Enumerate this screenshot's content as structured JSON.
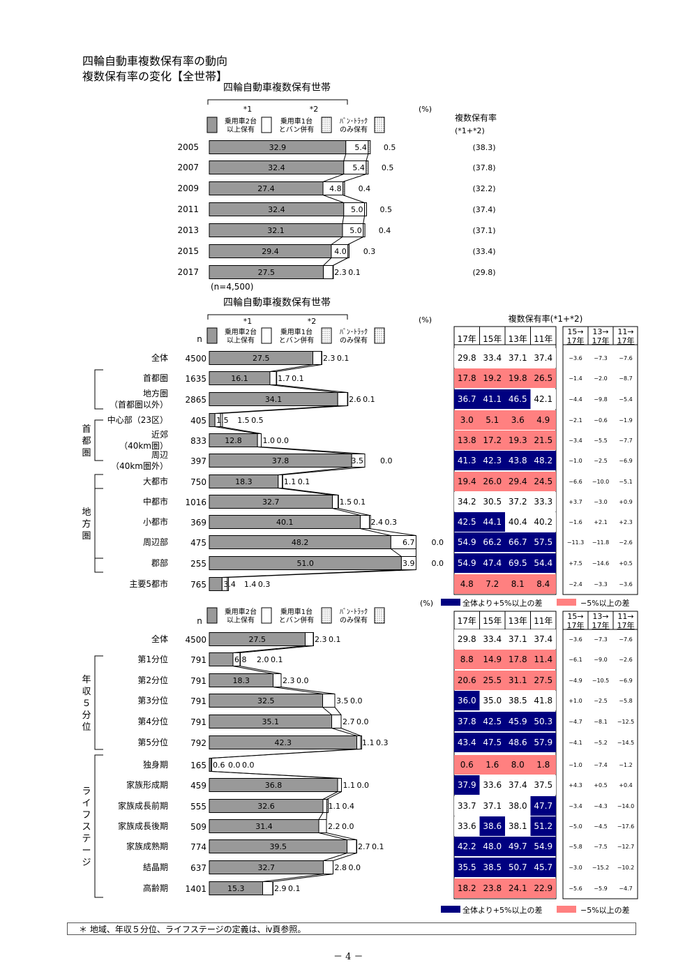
{
  "page": {
    "title_line1": "四輪自動車複数保有率の動向",
    "title_line2": "複数保有率の変化【全世帯】",
    "footnote": "＊ 地域、年収５分位、ライフステージの定義は、ⅳ頁参照。",
    "page_number": "－ 4 －"
  },
  "colors": {
    "bar": "#999999",
    "high": "#000080",
    "low": "#FF8080"
  },
  "legend": {
    "star1": "*1",
    "star2": "*2",
    "pct": "(%)",
    "cat1_a": "乗用車2台",
    "cat1_b": "以上保有",
    "cat2_a": "乗用車1台",
    "cat2_b": "とバン併有",
    "cat3_a": "ﾊﾞﾝ･ﾄﾗｯｸ",
    "cat3_b": "のみ保有",
    "n": "n",
    "high_label": "全体より+5%以上の差",
    "low_label": "−5%以上の差"
  },
  "chart_data": [
    {
      "type": "bar",
      "stacked": true,
      "title": "四輪自動車複数保有世帯",
      "series_names": [
        "乗用車2台以上保有",
        "乗用車1台とバン併有",
        "ﾊﾞﾝ･ﾄﾗｯｸのみ保有"
      ],
      "categories": [
        "2005",
        "2007",
        "2009",
        "2011",
        "2013",
        "2015",
        "2017"
      ],
      "rows": [
        {
          "label": "2005",
          "v": [
            32.9,
            5.4,
            0.5
          ],
          "rate": "(38.3)"
        },
        {
          "label": "2007",
          "v": [
            32.4,
            5.4,
            0.5
          ],
          "rate": "(37.8)"
        },
        {
          "label": "2009",
          "v": [
            27.4,
            4.8,
            0.4
          ],
          "rate": "(32.2)"
        },
        {
          "label": "2011",
          "v": [
            32.4,
            5.0,
            0.5
          ],
          "rate": "(37.4)"
        },
        {
          "label": "2013",
          "v": [
            32.1,
            5.0,
            0.4
          ],
          "rate": "(37.1)"
        },
        {
          "label": "2015",
          "v": [
            29.4,
            4.0,
            0.3
          ],
          "rate": "(33.4)"
        },
        {
          "label": "2017",
          "v": [
            27.5,
            2.3,
            0.1
          ],
          "rate": "(29.8)"
        }
      ],
      "rate_header_1": "複数保有率",
      "rate_header_2": "(*1+*2)",
      "n_note": "(n=4,500)"
    },
    {
      "type": "bar",
      "stacked": true,
      "title": "四輪自動車複数保有世帯",
      "table_title": "複数保有率(*1+*2)",
      "rate_columns": [
        "17年",
        "15年",
        "13年",
        "11年"
      ],
      "diff_columns": [
        "15→\n17年",
        "13→\n17年",
        "11→\n17年"
      ],
      "groups": [
        {
          "label": "首都圏",
          "from": 4,
          "to": 6
        },
        {
          "label": "地方圏",
          "from": 7,
          "to": 11
        }
      ],
      "rows": [
        {
          "label": "全体",
          "n": "4500",
          "v": [
            27.5,
            2.3,
            0.1
          ],
          "rates": [
            29.8,
            33.4,
            37.1,
            37.4
          ],
          "cls": [
            "",
            "",
            "",
            ""
          ],
          "diffs": [
            "−3.6",
            "−7.3",
            "−7.6"
          ]
        },
        {
          "label": "首都圏",
          "n": "1635",
          "v": [
            16.1,
            1.7,
            0.1
          ],
          "rates": [
            17.8,
            19.2,
            19.8,
            26.5
          ],
          "cls": [
            "l",
            "l",
            "l",
            "l"
          ],
          "diffs": [
            "−1.4",
            "−2.0",
            "−8.7"
          ]
        },
        {
          "label": "地方圏",
          "label2": "（首都圏以外）",
          "n": "2865",
          "v": [
            34.1,
            2.6,
            0.1
          ],
          "rates": [
            36.7,
            41.1,
            46.5,
            42.1
          ],
          "cls": [
            "h",
            "h",
            "h",
            ""
          ],
          "diffs": [
            "−4.4",
            "−9.8",
            "−5.4"
          ]
        },
        {
          "label": "中心部（23区）",
          "n": "405",
          "v": [
            1.5,
            1.5,
            0.5
          ],
          "rates": [
            3.0,
            5.1,
            3.6,
            4.9
          ],
          "cls": [
            "l",
            "l",
            "l",
            "l"
          ],
          "diffs": [
            "−2.1",
            "−0.6",
            "−1.9"
          ]
        },
        {
          "label": "近郊",
          "label2": "（40km圏）",
          "n": "833",
          "v": [
            12.8,
            1.0,
            0.0
          ],
          "rates": [
            13.8,
            17.2,
            19.3,
            21.5
          ],
          "cls": [
            "l",
            "l",
            "l",
            "l"
          ],
          "diffs": [
            "−3.4",
            "−5.5",
            "−7.7"
          ]
        },
        {
          "label": "周辺",
          "label2": "（40km圏外）",
          "n": "397",
          "v": [
            37.8,
            3.5,
            0.0
          ],
          "rates": [
            41.3,
            42.3,
            43.8,
            48.2
          ],
          "cls": [
            "h",
            "h",
            "h",
            "h"
          ],
          "diffs": [
            "−1.0",
            "−2.5",
            "−6.9"
          ]
        },
        {
          "label": "大都市",
          "n": "750",
          "v": [
            18.3,
            1.1,
            0.1
          ],
          "rates": [
            19.4,
            26.0,
            29.4,
            24.5
          ],
          "cls": [
            "l",
            "l",
            "l",
            "l"
          ],
          "diffs": [
            "−6.6",
            "−10.0",
            "−5.1"
          ]
        },
        {
          "label": "中都市",
          "n": "1016",
          "v": [
            32.7,
            1.5,
            0.1
          ],
          "rates": [
            34.2,
            30.5,
            37.2,
            33.3
          ],
          "cls": [
            "",
            "",
            "",
            ""
          ],
          "diffs": [
            "+3.7",
            "−3.0",
            "+0.9"
          ]
        },
        {
          "label": "小都市",
          "n": "369",
          "v": [
            40.1,
            2.4,
            0.3
          ],
          "rates": [
            42.5,
            44.1,
            40.4,
            40.2
          ],
          "cls": [
            "h",
            "h",
            "",
            ""
          ],
          "diffs": [
            "−1.6",
            "+2.1",
            "+2.3"
          ]
        },
        {
          "label": "周辺部",
          "n": "475",
          "v": [
            48.2,
            6.7,
            0.0
          ],
          "rates": [
            54.9,
            66.2,
            66.7,
            57.5
          ],
          "cls": [
            "h",
            "h",
            "h",
            "h"
          ],
          "diffs": [
            "−11.3",
            "−11.8",
            "−2.6"
          ]
        },
        {
          "label": "郡部",
          "n": "255",
          "v": [
            51.0,
            3.9,
            0.0
          ],
          "rates": [
            54.9,
            47.4,
            69.5,
            54.4
          ],
          "cls": [
            "h",
            "h",
            "h",
            "h"
          ],
          "diffs": [
            "+7.5",
            "−14.6",
            "+0.5"
          ]
        },
        {
          "label": "主要5都市",
          "n": "765",
          "v": [
            3.4,
            1.4,
            0.3
          ],
          "rates": [
            4.8,
            7.2,
            8.1,
            8.4
          ],
          "cls": [
            "l",
            "l",
            "l",
            "l"
          ],
          "diffs": [
            "−2.4",
            "−3.3",
            "−3.6"
          ]
        }
      ],
      "side_groups": [
        {
          "text": "首都圏",
          "from": 3,
          "to": 5
        },
        {
          "text": "地方圏",
          "from": 6,
          "to": 10
        }
      ]
    },
    {
      "type": "bar",
      "stacked": true,
      "rate_columns": [
        "17年",
        "15年",
        "13年",
        "11年"
      ],
      "diff_columns": [
        "15→\n17年",
        "13→\n17年",
        "11→\n17年"
      ],
      "rows": [
        {
          "label": "全体",
          "n": "4500",
          "v": [
            27.5,
            2.3,
            0.1
          ],
          "rates": [
            29.8,
            33.4,
            37.1,
            37.4
          ],
          "cls": [
            "",
            "",
            "",
            ""
          ],
          "diffs": [
            "−3.6",
            "−7.3",
            "−7.6"
          ]
        },
        {
          "label": "第1分位",
          "n": "791",
          "v": [
            6.8,
            2.0,
            0.1
          ],
          "rates": [
            8.8,
            14.9,
            17.8,
            11.4
          ],
          "cls": [
            "l",
            "l",
            "l",
            "l"
          ],
          "diffs": [
            "−6.1",
            "−9.0",
            "−2.6"
          ]
        },
        {
          "label": "第2分位",
          "n": "791",
          "v": [
            18.3,
            2.3,
            0.0
          ],
          "rates": [
            20.6,
            25.5,
            31.1,
            27.5
          ],
          "cls": [
            "l",
            "l",
            "l",
            "l"
          ],
          "diffs": [
            "−4.9",
            "−10.5",
            "−6.9"
          ]
        },
        {
          "label": "第3分位",
          "n": "791",
          "v": [
            32.5,
            3.5,
            0.0
          ],
          "rates": [
            36.0,
            35.0,
            38.5,
            41.8
          ],
          "cls": [
            "h",
            "",
            "",
            ""
          ],
          "diffs": [
            "+1.0",
            "−2.5",
            "−5.8"
          ]
        },
        {
          "label": "第4分位",
          "n": "791",
          "v": [
            35.1,
            2.7,
            0.0
          ],
          "rates": [
            37.8,
            42.5,
            45.9,
            50.3
          ],
          "cls": [
            "h",
            "h",
            "h",
            "h"
          ],
          "diffs": [
            "−4.7",
            "−8.1",
            "−12.5"
          ]
        },
        {
          "label": "第5分位",
          "n": "792",
          "v": [
            42.3,
            1.1,
            0.3
          ],
          "rates": [
            43.4,
            47.5,
            48.6,
            57.9
          ],
          "cls": [
            "h",
            "h",
            "h",
            "h"
          ],
          "diffs": [
            "−4.1",
            "−5.2",
            "−14.5"
          ]
        },
        {
          "label": "独身期",
          "n": "165",
          "v": [
            0.6,
            0.0,
            0.0
          ],
          "rates": [
            0.6,
            1.6,
            8.0,
            1.8
          ],
          "cls": [
            "l",
            "l",
            "l",
            "l"
          ],
          "diffs": [
            "−1.0",
            "−7.4",
            "−1.2"
          ]
        },
        {
          "label": "家族形成期",
          "n": "459",
          "v": [
            36.8,
            1.1,
            0.0
          ],
          "rates": [
            37.9,
            33.6,
            37.4,
            37.5
          ],
          "cls": [
            "h",
            "",
            "",
            ""
          ],
          "diffs": [
            "+4.3",
            "+0.5",
            "+0.4"
          ]
        },
        {
          "label": "家族成長前期",
          "n": "555",
          "v": [
            32.6,
            1.1,
            0.4
          ],
          "rates": [
            33.7,
            37.1,
            38.0,
            47.7
          ],
          "cls": [
            "",
            "",
            "",
            "h"
          ],
          "diffs": [
            "−3.4",
            "−4.3",
            "−14.0"
          ]
        },
        {
          "label": "家族成長後期",
          "n": "509",
          "v": [
            31.4,
            2.2,
            0.0
          ],
          "rates": [
            33.6,
            38.6,
            38.1,
            51.2
          ],
          "cls": [
            "",
            "h",
            "",
            "h"
          ],
          "diffs": [
            "−5.0",
            "−4.5",
            "−17.6"
          ]
        },
        {
          "label": "家族成熟期",
          "n": "774",
          "v": [
            39.5,
            2.7,
            0.1
          ],
          "rates": [
            42.2,
            48.0,
            49.7,
            54.9
          ],
          "cls": [
            "h",
            "h",
            "h",
            "h"
          ],
          "diffs": [
            "−5.8",
            "−7.5",
            "−12.7"
          ]
        },
        {
          "label": "結晶期",
          "n": "637",
          "v": [
            32.7,
            2.8,
            0.0
          ],
          "rates": [
            35.5,
            38.5,
            50.7,
            45.7
          ],
          "cls": [
            "h",
            "h",
            "h",
            "h"
          ],
          "diffs": [
            "−3.0",
            "−15.2",
            "−10.2"
          ]
        },
        {
          "label": "高齢期",
          "n": "1401",
          "v": [
            15.3,
            2.9,
            0.1
          ],
          "rates": [
            18.2,
            23.8,
            24.1,
            22.9
          ],
          "cls": [
            "l",
            "l",
            "l",
            "l"
          ],
          "diffs": [
            "−5.6",
            "−5.9",
            "−4.7"
          ]
        }
      ],
      "side_groups": [
        {
          "text": "年収５分位",
          "from": 1,
          "to": 5
        },
        {
          "text": "ライフステージ",
          "from": 6,
          "to": 12
        }
      ]
    }
  ]
}
